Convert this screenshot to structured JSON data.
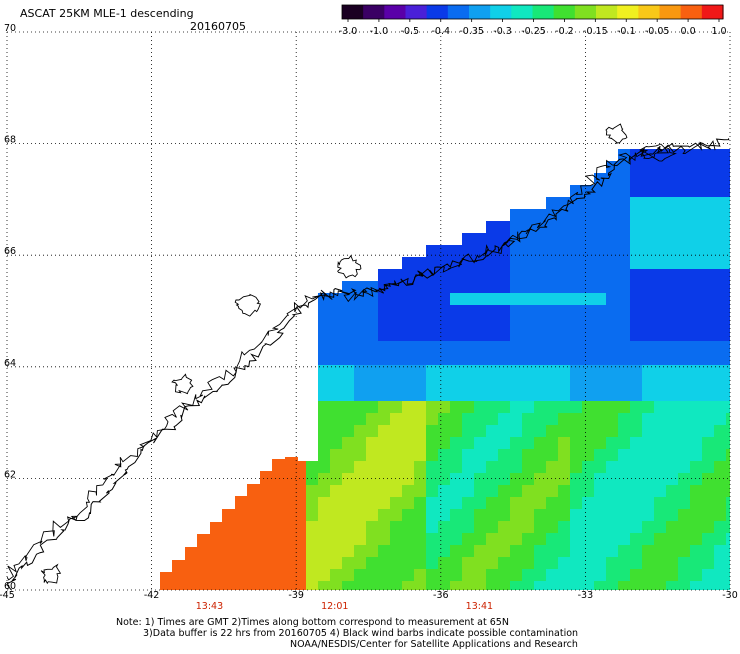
{
  "header": {
    "title": "ASCAT 25KM MLE-1 descending",
    "date": "20160705"
  },
  "colorbar": {
    "colors": [
      "#1a0022",
      "#3a0064",
      "#5a00a8",
      "#4a20d8",
      "#0a3ae8",
      "#0a6cf0",
      "#10a0f0",
      "#10d0e8",
      "#10e8c0",
      "#18e878",
      "#40e030",
      "#80e020",
      "#c0e820",
      "#f0f020",
      "#f8c818",
      "#f89810",
      "#f86010",
      "#f01818"
    ],
    "tick_labels": [
      "-3.0",
      "-1.0",
      "-0.5",
      "-0.4",
      "-0.35",
      "-0.3",
      "-0.25",
      "-0.2",
      "-0.15",
      "-0.1",
      "-0.05",
      "0.0",
      "1.0"
    ]
  },
  "map": {
    "lon_range": [
      -45,
      -30
    ],
    "lat_range": [
      60,
      70
    ],
    "lon_ticks": [
      "-45",
      "-42",
      "-39",
      "-36",
      "-33",
      "-30"
    ],
    "lat_ticks": [
      "70",
      "68",
      "66",
      "64",
      "62",
      "60"
    ],
    "time_labels": [
      "13:43",
      "12:01",
      "13:41"
    ],
    "time_color": "#cc2200",
    "coast_color": "#000000",
    "grid_style": "dotted"
  },
  "footer": {
    "line1": "Note: 1) Times are GMT 2)Times along bottom correspond to measurement at 65N",
    "line2": "3)Data buffer is 22 hrs from 20160705 4) Black wind barbs indicate possible contamination",
    "line3": "NOAA/NESDIS/Center for Satellite Applications and Research"
  }
}
